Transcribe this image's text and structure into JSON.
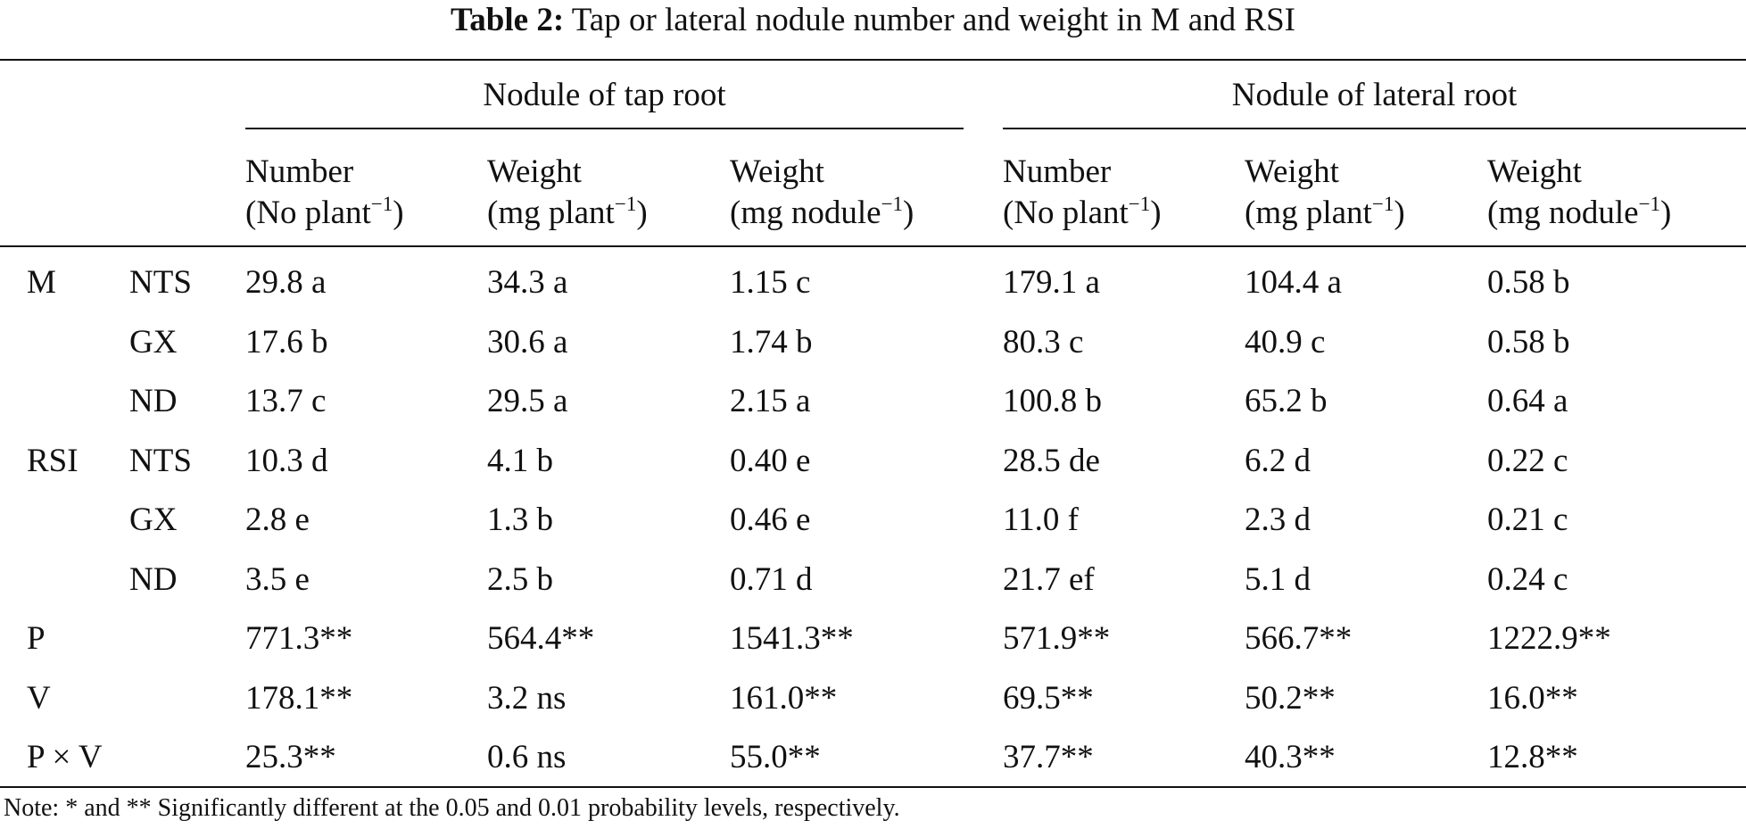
{
  "title": {
    "label": "Table 2:",
    "text": "Tap or lateral nodule number and weight in M and RSI"
  },
  "groups": [
    {
      "label": "Nodule of tap root"
    },
    {
      "label": "Nodule of lateral root"
    }
  ],
  "columns": [
    {
      "line1": "Number",
      "line2": "(No plant",
      "exp": "−1",
      "close": ")"
    },
    {
      "line1": "Weight",
      "line2": "(mg plant",
      "exp": "−1",
      "close": ")"
    },
    {
      "line1": "Weight",
      "line2": "(mg nodule",
      "exp": "−1",
      "close": ")"
    },
    {
      "line1": "Number",
      "line2": "(No plant",
      "exp": "−1",
      "close": ")"
    },
    {
      "line1": "Weight",
      "line2": "(mg plant",
      "exp": "−1",
      "close": ")"
    },
    {
      "line1": "Weight",
      "line2": "(mg nodule",
      "exp": "−1",
      "close": ")"
    }
  ],
  "rows": [
    {
      "group": "M",
      "sub": "NTS",
      "values": [
        "29.8 a",
        "34.3 a",
        "1.15 c",
        "179.1 a",
        "104.4 a",
        "0.58 b"
      ]
    },
    {
      "group": "",
      "sub": "GX",
      "values": [
        "17.6 b",
        "30.6 a",
        "1.74 b",
        "80.3 c",
        "40.9 c",
        "0.58 b"
      ]
    },
    {
      "group": "",
      "sub": "ND",
      "values": [
        "13.7 c",
        "29.5 a",
        "2.15 a",
        "100.8 b",
        "65.2 b",
        "0.64 a"
      ]
    },
    {
      "group": "RSI",
      "sub": "NTS",
      "values": [
        "10.3 d",
        "4.1 b",
        "0.40 e",
        "28.5 de",
        "6.2 d",
        "0.22 c"
      ]
    },
    {
      "group": "",
      "sub": "GX",
      "values": [
        "2.8 e",
        "1.3 b",
        "0.46 e",
        "11.0 f",
        "2.3 d",
        "0.21 c"
      ]
    },
    {
      "group": "",
      "sub": "ND",
      "values": [
        "3.5 e",
        "2.5 b",
        "0.71 d",
        "21.7 ef",
        "5.1 d",
        "0.24 c"
      ]
    },
    {
      "group": "P",
      "sub": "",
      "values": [
        "771.3**",
        "564.4**",
        "1541.3**",
        "571.9**",
        "566.7**",
        "1222.9**"
      ]
    },
    {
      "group": "V",
      "sub": "",
      "values": [
        "178.1**",
        "3.2 ns",
        "161.0**",
        "69.5**",
        "50.2**",
        "16.0**"
      ]
    },
    {
      "group": "P × V",
      "sub": "",
      "values": [
        "25.3**",
        "0.6 ns",
        "55.0**",
        "37.7**",
        "40.3**",
        "12.8**"
      ]
    }
  ],
  "note": "Note: * and ** Significantly different at the 0.05 and 0.01 probability levels, respectively."
}
